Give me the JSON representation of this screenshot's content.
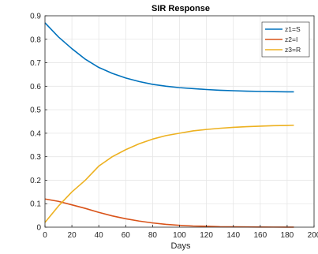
{
  "chart_data": {
    "type": "line",
    "title": "SIR Response",
    "xlabel": "Days",
    "ylabel": "",
    "xlim": [
      0,
      200
    ],
    "ylim": [
      0,
      0.9
    ],
    "xticks": [
      "0",
      "20",
      "40",
      "60",
      "80",
      "100",
      "120",
      "140",
      "160",
      "180",
      "200"
    ],
    "yticks": [
      "0",
      "0.1",
      "0.2",
      "0.3",
      "0.4",
      "0.5",
      "0.6",
      "0.7",
      "0.8",
      "0.9"
    ],
    "grid": true,
    "legend_position": "top-right",
    "x": [
      0,
      10,
      20,
      30,
      40,
      50,
      60,
      70,
      80,
      90,
      100,
      110,
      120,
      130,
      140,
      150,
      160,
      170,
      180,
      185
    ],
    "series": [
      {
        "name": "z1=S",
        "color": "#0072BD",
        "values": [
          0.87,
          0.81,
          0.76,
          0.715,
          0.68,
          0.655,
          0.635,
          0.62,
          0.608,
          0.6,
          0.594,
          0.59,
          0.586,
          0.583,
          0.581,
          0.579,
          0.578,
          0.577,
          0.576,
          0.576
        ]
      },
      {
        "name": "z2=I",
        "color": "#D95319",
        "values": [
          0.12,
          0.11,
          0.095,
          0.08,
          0.063,
          0.048,
          0.036,
          0.026,
          0.018,
          0.012,
          0.008,
          0.005,
          0.004,
          0.002,
          0.0015,
          0.001,
          0.0006,
          0.0004,
          0.0002,
          0.0001
        ]
      },
      {
        "name": "z3=R",
        "color": "#EDB120",
        "values": [
          0.02,
          0.09,
          0.15,
          0.2,
          0.26,
          0.3,
          0.33,
          0.355,
          0.375,
          0.39,
          0.4,
          0.41,
          0.416,
          0.421,
          0.425,
          0.428,
          0.43,
          0.432,
          0.433,
          0.434
        ]
      }
    ]
  }
}
